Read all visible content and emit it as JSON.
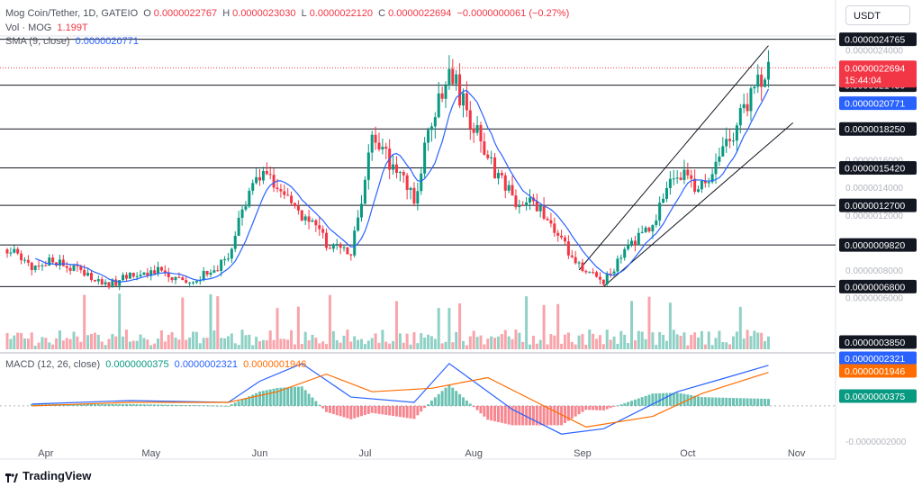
{
  "header": {
    "symbol": "Mog Coin/Tether, 1D, GATEIO",
    "open_label": "O",
    "open": "0.0000022767",
    "high_label": "H",
    "high": "0.0000023030",
    "low_label": "L",
    "low": "0.0000022120",
    "close_label": "C",
    "close": "0.0000022694",
    "change": "−0.0000000061 (−0.27%)",
    "vol_label": "Vol · MOG",
    "vol": "1.199T",
    "sma_label": "SMA (9, close)",
    "sma": "0.0000020771",
    "macd_label": "MACD (12, 26, close)",
    "macd_hist": "0.0000000375",
    "macd_line": "0.0000002321",
    "macd_signal": "0.0000001946"
  },
  "currency": "USDT",
  "branding": "TradingView",
  "colors": {
    "up": "#089981",
    "down": "#f23645",
    "sma": "#2962ff",
    "signal": "#ff6d00",
    "level_line": "#131722",
    "channel": "#131722"
  },
  "chart_data": [
    {
      "type": "candlestick",
      "x_axis_labels": [
        "Apr",
        "May",
        "Jun",
        "Jul",
        "Aug",
        "Sep",
        "Oct",
        "Nov"
      ],
      "x_axis_date_ticks": [
        "2024-04-01",
        "2024-05-01",
        "2024-06-01",
        "2024-07-01",
        "2024-08-01",
        "2024-09-01",
        "2024-10-01",
        "2024-11-01"
      ],
      "x_range": [
        "2024-03-21",
        "2024-11-07"
      ],
      "y_axis_labels": [
        "0.0000024000",
        "0.0000016000",
        "0.0000014000",
        "0.0000012000",
        "0.0000008000",
        "0.0000006000"
      ],
      "ylim": [
        4.6e-07,
        2.5e-06
      ],
      "last_price": "0.0000022694",
      "countdown": "15:44:04",
      "sma_value_label": "0.0000020771",
      "horizontal_levels": [
        {
          "value": 2.4765e-06,
          "label": "0.0000024765"
        },
        {
          "value": 2.143e-06,
          "label": "0.0000021430"
        },
        {
          "value": 1.825e-06,
          "label": "0.0000018250"
        },
        {
          "value": 1.542e-06,
          "label": "0.0000015420"
        },
        {
          "value": 1.27e-06,
          "label": "0.0000012700"
        },
        {
          "value": 9.82e-07,
          "label": "0.0000009820"
        },
        {
          "value": 6.8e-07,
          "label": "0.0000006800"
        }
      ],
      "channel": {
        "upper": [
          [
            "2024-08-31",
            8e-07
          ],
          [
            "2024-10-24",
            2.43e-06
          ]
        ],
        "lower": [
          [
            "2024-09-07",
            6.8e-07
          ],
          [
            "2024-10-31",
            1.87e-06
          ]
        ]
      },
      "close_series": [
        [
          "2024-03-21",
          9.5e-07
        ],
        [
          "2024-03-28",
          8.2e-07
        ],
        [
          "2024-04-04",
          8.7e-07
        ],
        [
          "2024-04-11",
          7.8e-07
        ],
        [
          "2024-04-18",
          6.9e-07
        ],
        [
          "2024-04-25",
          7.5e-07
        ],
        [
          "2024-05-02",
          8e-07
        ],
        [
          "2024-05-09",
          7.2e-07
        ],
        [
          "2024-05-16",
          7.6e-07
        ],
        [
          "2024-05-23",
          8.7e-07
        ],
        [
          "2024-05-27",
          1.22e-06
        ],
        [
          "2024-06-01",
          1.48e-06
        ],
        [
          "2024-06-06",
          1.4e-06
        ],
        [
          "2024-06-13",
          1.2e-06
        ],
        [
          "2024-06-20",
          1e-06
        ],
        [
          "2024-06-27",
          9.2e-07
        ],
        [
          "2024-07-03",
          1.72e-06
        ],
        [
          "2024-07-10",
          1.55e-06
        ],
        [
          "2024-07-15",
          1.3e-06
        ],
        [
          "2024-07-20",
          1.9e-06
        ],
        [
          "2024-07-25",
          2.26e-06
        ],
        [
          "2024-07-31",
          1.88e-06
        ],
        [
          "2024-08-05",
          1.62e-06
        ],
        [
          "2024-08-12",
          1.32e-06
        ],
        [
          "2024-08-19",
          1.28e-06
        ],
        [
          "2024-08-26",
          1e-06
        ],
        [
          "2024-09-02",
          8e-07
        ],
        [
          "2024-09-07",
          7.2e-07
        ],
        [
          "2024-09-14",
          9.5e-07
        ],
        [
          "2024-09-21",
          1.15e-06
        ],
        [
          "2024-09-28",
          1.5e-06
        ],
        [
          "2024-10-05",
          1.4e-06
        ],
        [
          "2024-10-12",
          1.68e-06
        ],
        [
          "2024-10-19",
          2.05e-06
        ],
        [
          "2024-10-24",
          2.27e-06
        ]
      ]
    },
    {
      "type": "bar",
      "title": "Vol · MOG",
      "last_value": "1.199T",
      "level_label": "0.0000003850"
    },
    {
      "type": "line",
      "title": "MACD (12, 26, close)",
      "y_axis_labels": [
        "0.0000000375",
        "0.0000002321",
        "0.0000001946",
        "-0.0000002000"
      ],
      "ylim": [
        -2.1e-07,
        2.7e-07
      ],
      "series": [
        {
          "name": "MACD",
          "values": [
            [
              "2024-03-28",
              1e-08
            ],
            [
              "2024-04-25",
              3e-08
            ],
            [
              "2024-05-23",
              2e-08
            ],
            [
              "2024-06-01",
              1.4e-07
            ],
            [
              "2024-06-13",
              2.4e-07
            ],
            [
              "2024-06-27",
              5e-08
            ],
            [
              "2024-07-15",
              2e-08
            ],
            [
              "2024-07-25",
              2.4e-07
            ],
            [
              "2024-08-12",
              -2e-08
            ],
            [
              "2024-08-26",
              -1.6e-07
            ],
            [
              "2024-09-07",
              -1.3e-07
            ],
            [
              "2024-09-28",
              8e-08
            ],
            [
              "2024-10-12",
              1.6e-07
            ],
            [
              "2024-10-24",
              2.3e-07
            ]
          ]
        },
        {
          "name": "Signal",
          "values": [
            [
              "2024-03-28",
              0.0
            ],
            [
              "2024-04-25",
              2e-08
            ],
            [
              "2024-05-23",
              2e-08
            ],
            [
              "2024-06-06",
              8e-08
            ],
            [
              "2024-06-20",
              1.8e-07
            ],
            [
              "2024-07-03",
              8e-08
            ],
            [
              "2024-07-20",
              1e-07
            ],
            [
              "2024-08-05",
              1.6e-07
            ],
            [
              "2024-08-19",
              2e-08
            ],
            [
              "2024-09-02",
              -1.2e-07
            ],
            [
              "2024-09-21",
              -6e-08
            ],
            [
              "2024-10-05",
              7e-08
            ],
            [
              "2024-10-24",
              1.9e-07
            ]
          ]
        }
      ]
    }
  ]
}
